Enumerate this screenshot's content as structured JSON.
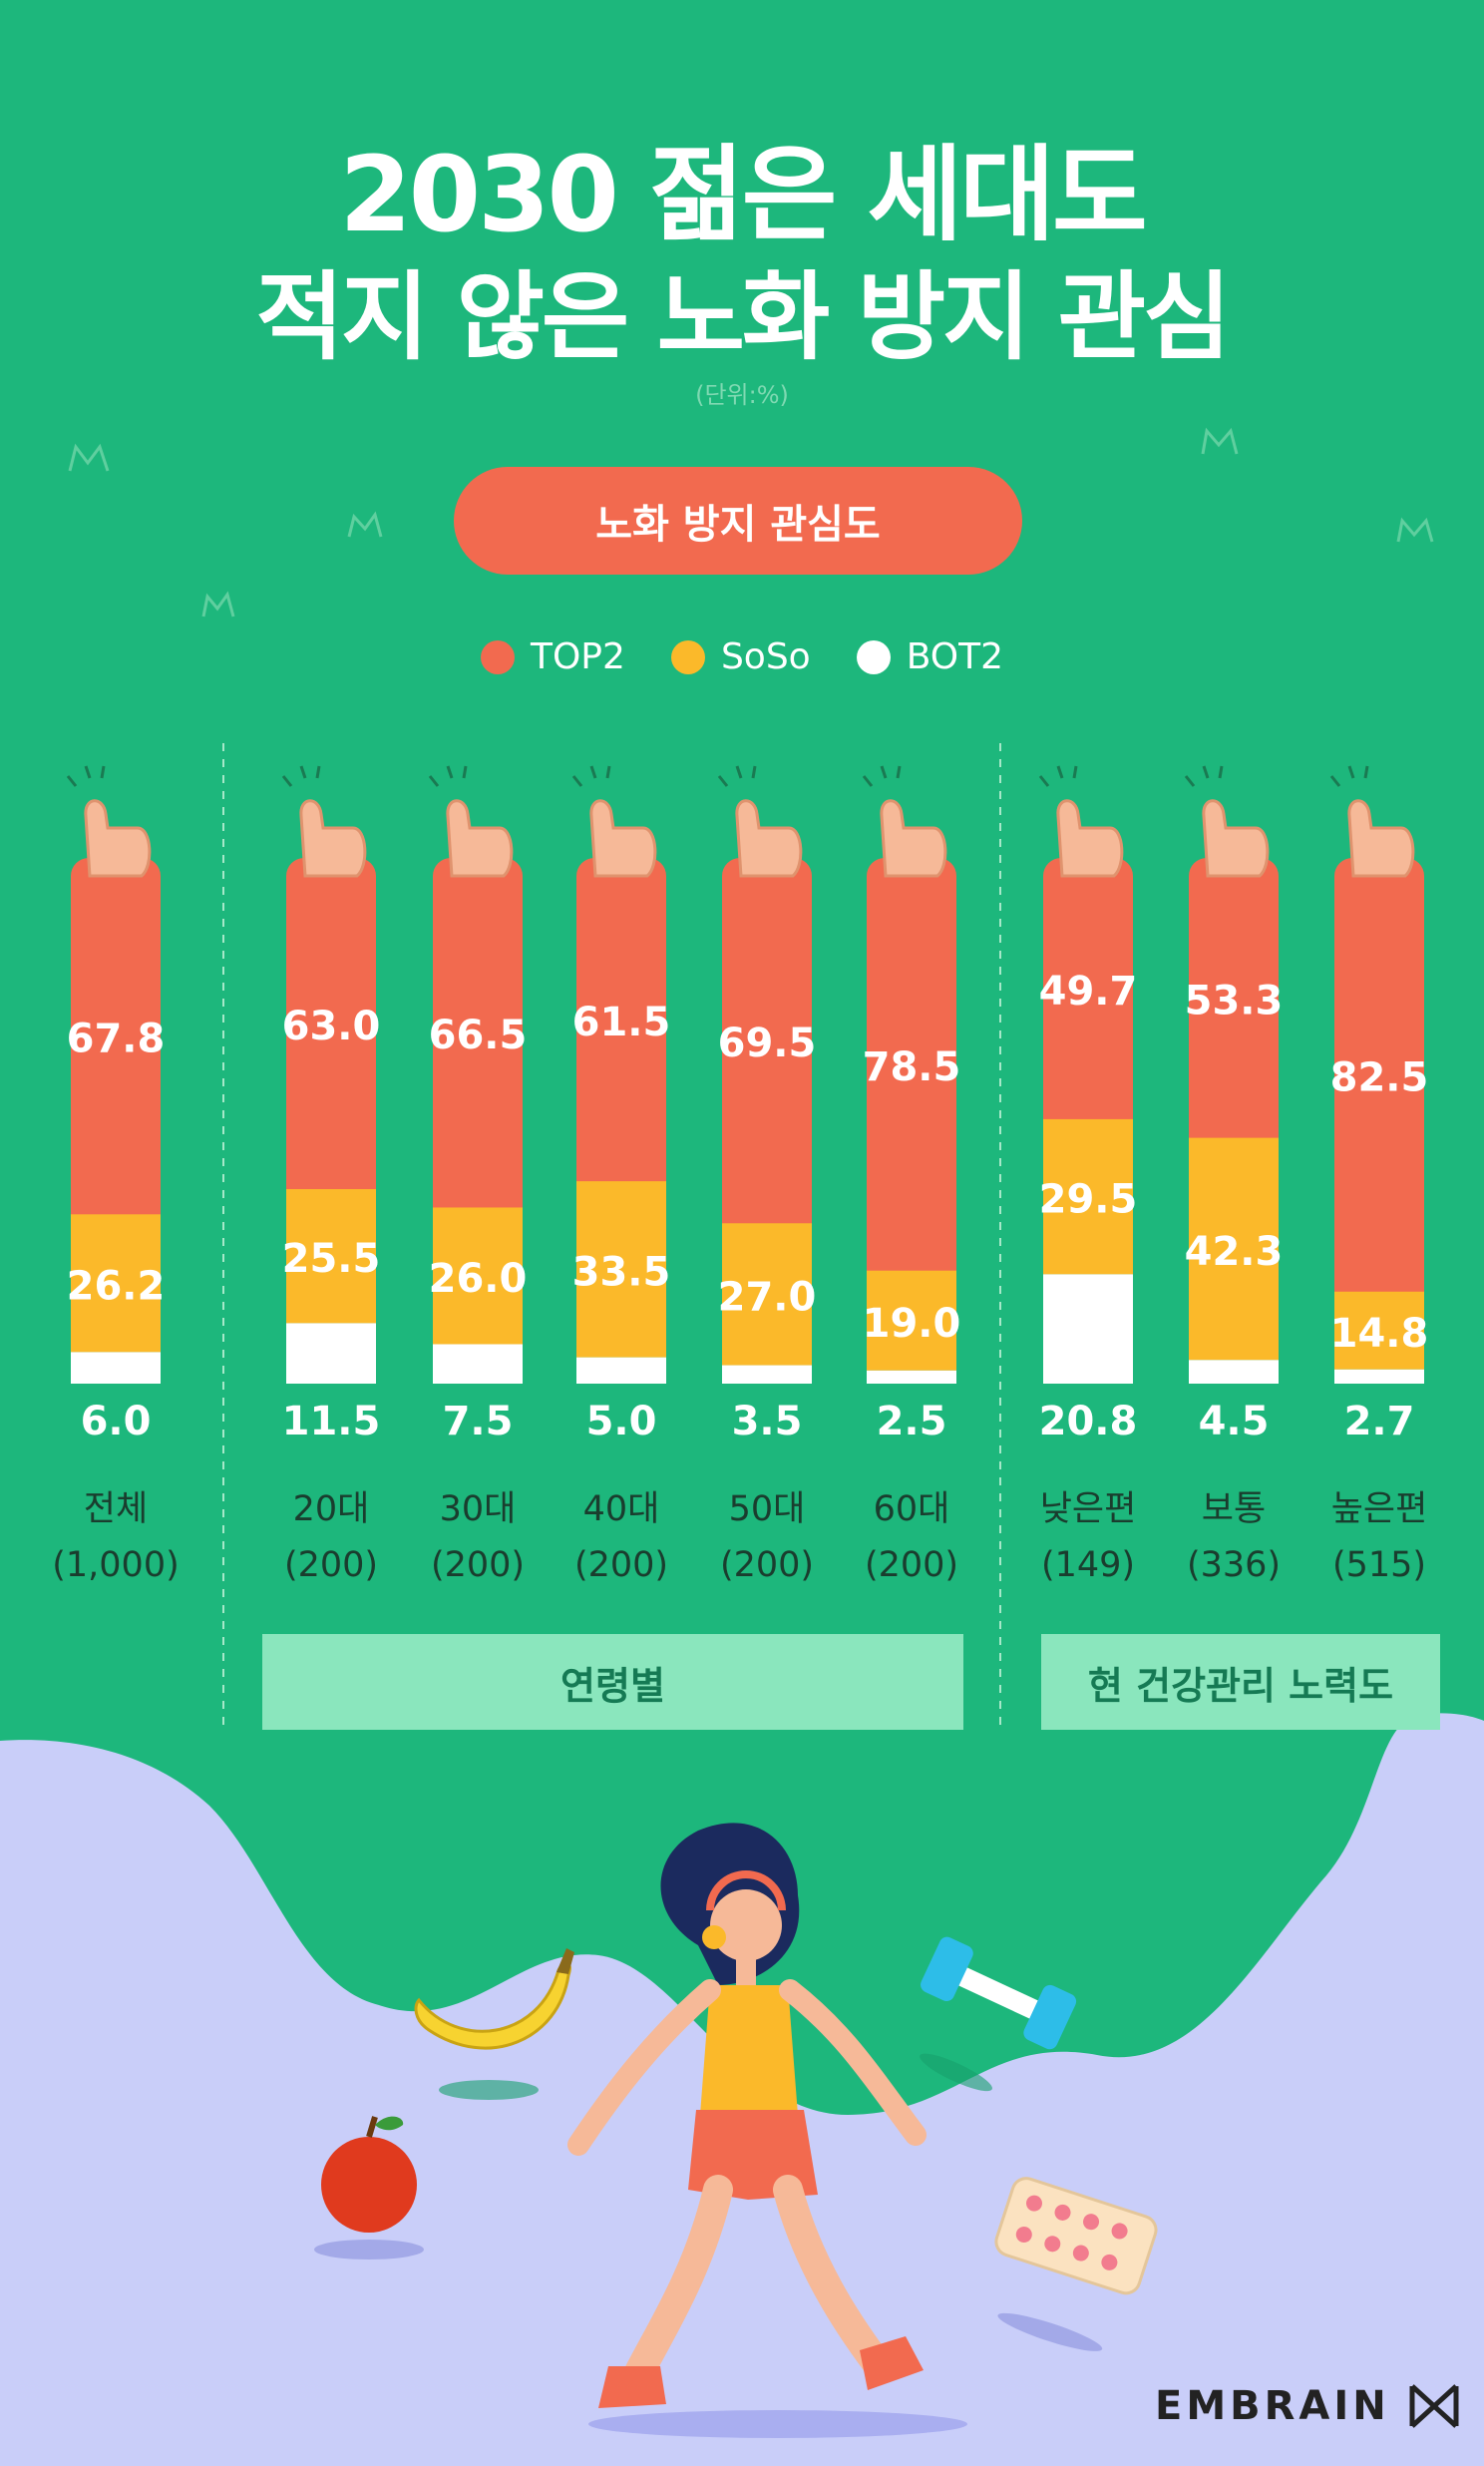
{
  "title": {
    "line1": "2030 젊은 세대도",
    "line2_regular": "적지 않은 ",
    "line2_bold": "노화 방지 관심"
  },
  "unit": "(단위:%)",
  "pill_label": "노화 방지 관심도",
  "legend": [
    {
      "name": "TOP2",
      "color": "#f26a4f"
    },
    {
      "name": "SoSo",
      "color": "#fbb92a"
    },
    {
      "name": "BOT2",
      "color": "#ffffff"
    }
  ],
  "groups": [
    {
      "label": "연령별"
    },
    {
      "label": "현 건강관리 노력도"
    }
  ],
  "brand": "EMBRAIN",
  "chart_data": {
    "type": "bar",
    "stacked": true,
    "categories": [
      "전체",
      "20대",
      "30대",
      "40대",
      "50대",
      "60대",
      "낮은편",
      "보통",
      "높은편"
    ],
    "sample_sizes": [
      "(1,000)",
      "(200)",
      "(200)",
      "(200)",
      "(200)",
      "(200)",
      "(149)",
      "(336)",
      "(515)"
    ],
    "series": [
      {
        "name": "TOP2",
        "color": "#f26a4f",
        "values": [
          67.8,
          63.0,
          66.5,
          61.5,
          69.5,
          78.5,
          49.7,
          53.3,
          82.5
        ]
      },
      {
        "name": "SoSo",
        "color": "#fbb92a",
        "values": [
          26.2,
          25.5,
          26.0,
          33.5,
          27.0,
          19.0,
          29.5,
          42.3,
          14.8
        ]
      },
      {
        "name": "BOT2",
        "color": "#ffffff",
        "values": [
          6.0,
          11.5,
          7.5,
          5.0,
          3.5,
          2.5,
          20.8,
          4.5,
          2.7
        ]
      }
    ],
    "value_labels": {
      "TOP2": [
        "67.8",
        "63.0",
        "66.5",
        "61.5",
        "69.5",
        "78.5",
        "49.7",
        "53.3",
        "82.5"
      ],
      "SoSo": [
        "26.2",
        "25.5",
        "26.0",
        "33.5",
        "27.0",
        "19.0",
        "29.5",
        "42.3",
        "14.8"
      ],
      "BOT2": [
        "6.0",
        "11.5",
        "7.5",
        "5.0",
        "3.5",
        "2.5",
        "20.8",
        "4.5",
        "2.7"
      ]
    },
    "ylim": [
      0,
      100
    ]
  }
}
